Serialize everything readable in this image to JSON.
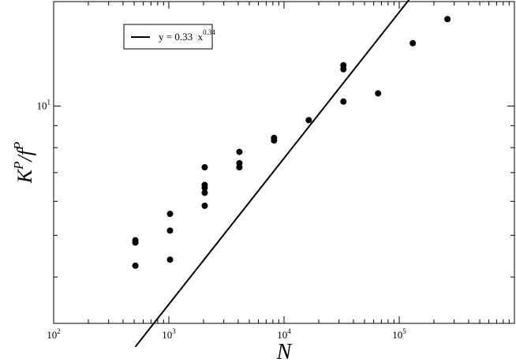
{
  "chart_data": {
    "type": "scatter",
    "xlabel": "N",
    "ylabel": {
      "main": "K",
      "sup1": "P",
      "slash": "/f",
      "sup2": "P"
    },
    "x_scale": "log",
    "y_scale": "log",
    "xlim": [
      100,
      1000000
    ],
    "ylim": [
      3.12,
      17.5
    ],
    "x_ticks": [
      {
        "value": 100,
        "base": "10",
        "exp": "2"
      },
      {
        "value": 1000,
        "base": "10",
        "exp": "3"
      },
      {
        "value": 10000,
        "base": "10",
        "exp": "4"
      },
      {
        "value": 100000,
        "base": "10",
        "exp": "5"
      }
    ],
    "y_ticks": [
      {
        "value": 10,
        "base": "10",
        "exp": "1"
      }
    ],
    "grid": false,
    "legend": {
      "placement": "top-left",
      "label_text": "y = 0.33  x",
      "label_exp": "0.34"
    },
    "series": [
      {
        "type": "scatter",
        "points": [
          [
            512,
            4.25
          ],
          [
            512,
            4.87
          ],
          [
            512,
            4.81
          ],
          [
            1024,
            5.13
          ],
          [
            1024,
            5.61
          ],
          [
            1024,
            4.39
          ],
          [
            2048,
            5.86
          ],
          [
            2048,
            6.28
          ],
          [
            2048,
            6.45
          ],
          [
            2048,
            6.55
          ],
          [
            2048,
            7.2
          ],
          [
            4096,
            7.2
          ],
          [
            4096,
            7.36
          ],
          [
            4096,
            7.82
          ],
          [
            8192,
            8.31
          ],
          [
            8192,
            8.43
          ],
          [
            16384,
            9.27
          ],
          [
            32768,
            10.24
          ],
          [
            32768,
            12.18
          ],
          [
            32768,
            12.44
          ],
          [
            65536,
            10.7
          ],
          [
            131072,
            14.0
          ],
          [
            262144,
            15.93
          ]
        ]
      },
      {
        "type": "line",
        "fit": {
          "coef": 0.33,
          "exp": 0.34
        },
        "x_range": [
          512,
          262144
        ]
      }
    ]
  }
}
